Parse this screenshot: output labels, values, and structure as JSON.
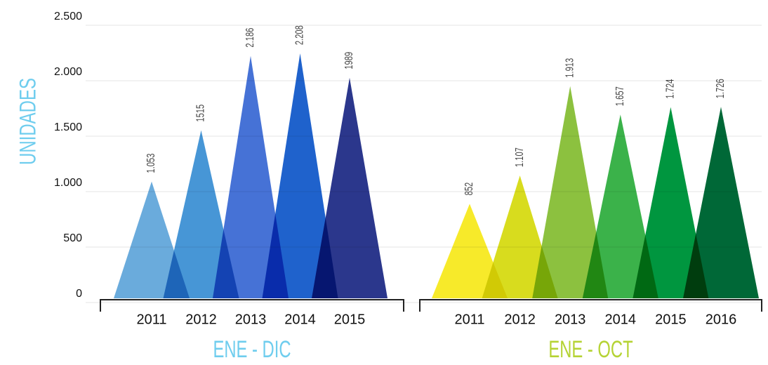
{
  "chart_data": [
    {
      "type": "triangle",
      "x_label": "ENE - DIC",
      "y_label": "UNIDADES",
      "categories": [
        "2011",
        "2012",
        "2013",
        "2014",
        "2015"
      ],
      "values": [
        1053,
        1515,
        2186,
        2208,
        1989
      ],
      "value_labels": [
        "1.053",
        "1515",
        "2.186",
        "2.208",
        "1989"
      ],
      "colors": [
        "#6aabdc",
        "#4796d6",
        "#4672d6",
        "#1f62cc",
        "#2b378c"
      ],
      "ylim": [
        0,
        2500
      ],
      "yticks": [
        0,
        500,
        {
          "value": 1000,
          "label": "1.000"
        },
        {
          "value": 1500,
          "label": "1.500"
        },
        {
          "value": 2000,
          "label": "2.000"
        },
        {
          "value": 2500,
          "label": "2.500"
        }
      ],
      "grid": true
    },
    {
      "type": "triangle",
      "x_label": "ENE - OCT",
      "categories": [
        "2011",
        "2012",
        "2013",
        "2014",
        "2015",
        "2016"
      ],
      "values": [
        852,
        1107,
        1913,
        1657,
        1724,
        1726
      ],
      "value_labels": [
        "852",
        "1.107",
        "1.913",
        "1.657",
        "1.724",
        "1.726"
      ],
      "colors": [
        "#f7ea2a",
        "#d8dc1e",
        "#8cc13f",
        "#3bb24a",
        "#00963f",
        "#006837"
      ],
      "ylim": [
        0,
        2500
      ]
    }
  ]
}
